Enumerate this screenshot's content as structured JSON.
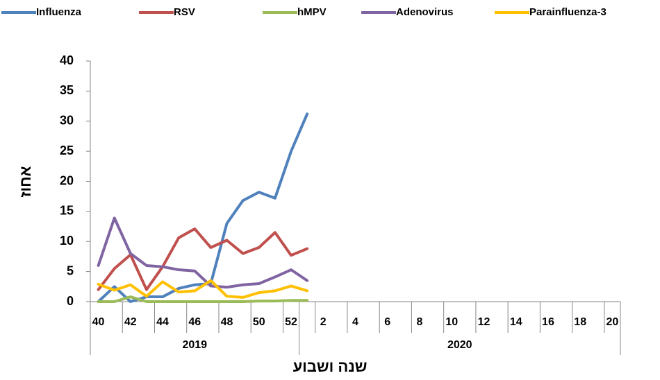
{
  "chart_data": {
    "type": "line",
    "y_label": "אחוז",
    "x_label": "שנה ושבוע",
    "x_groups": [
      "2019",
      "2020"
    ],
    "categories": [
      "40",
      null,
      "42",
      null,
      "44",
      null,
      "46",
      null,
      "48",
      null,
      "50",
      null,
      "52",
      null,
      "2",
      null,
      "4",
      null,
      "6",
      null,
      "8",
      null,
      "10",
      null,
      "12",
      null,
      "14",
      null,
      "16",
      null,
      "18",
      null,
      "20"
    ],
    "series": [
      {
        "name": "Influenza",
        "color": "#4f81bd",
        "values": [
          0,
          2.5,
          0,
          0.8,
          0.8,
          2.2,
          2.8,
          3,
          13,
          16.8,
          18.2,
          17.2,
          25,
          31.2,
          null,
          null,
          null,
          null,
          null,
          null,
          null,
          null,
          null,
          null,
          null,
          null,
          null,
          null,
          null,
          null,
          null,
          null,
          null
        ]
      },
      {
        "name": "RSV",
        "color": "#c0504d",
        "values": [
          2,
          5.5,
          7.8,
          2,
          5.8,
          10.6,
          12.1,
          9,
          10.2,
          8,
          9,
          11.5,
          7.7,
          8.8,
          null,
          null,
          null,
          null,
          null,
          null,
          null,
          null,
          null,
          null,
          null,
          null,
          null,
          null,
          null,
          null,
          null,
          null,
          null
        ]
      },
      {
        "name": "hMPV",
        "color": "#9bbb59",
        "values": [
          0,
          0,
          0.8,
          0,
          0,
          0,
          0,
          0,
          0,
          0,
          0.1,
          0.1,
          0.2,
          0.2,
          null,
          null,
          null,
          null,
          null,
          null,
          null,
          null,
          null,
          null,
          null,
          null,
          null,
          null,
          null,
          null,
          null,
          null,
          null
        ]
      },
      {
        "name": "Adenovirus",
        "color": "#8064a2",
        "values": [
          6,
          13.9,
          8,
          6,
          5.8,
          5.3,
          5.1,
          2.6,
          2.4,
          2.8,
          3,
          4.1,
          5.3,
          3.5,
          null,
          null,
          null,
          null,
          null,
          null,
          null,
          null,
          null,
          null,
          null,
          null,
          null,
          null,
          null,
          null,
          null,
          null,
          null
        ]
      },
      {
        "name": "Parainfluenza-3",
        "color": "#ffc000",
        "values": [
          2.9,
          1.9,
          2.8,
          0.9,
          3.3,
          1.6,
          1.8,
          3.5,
          0.9,
          0.7,
          1.5,
          1.8,
          2.6,
          1.8,
          null,
          null,
          null,
          null,
          null,
          null,
          null,
          null,
          null,
          null,
          null,
          null,
          null,
          null,
          null,
          null,
          null,
          null,
          null
        ]
      }
    ],
    "ylim": [
      0,
      40
    ],
    "yticks": [
      0,
      5,
      10,
      15,
      20,
      25,
      30,
      35,
      40
    ],
    "grid": false,
    "legend": "top"
  }
}
